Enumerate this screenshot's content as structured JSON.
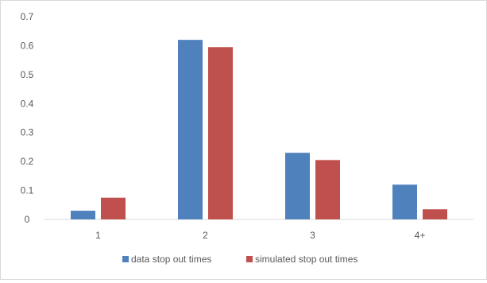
{
  "chart_data": {
    "type": "bar",
    "categories": [
      "1",
      "2",
      "3",
      "4+"
    ],
    "series": [
      {
        "name": "data stop out times",
        "values": [
          0.03,
          0.62,
          0.23,
          0.12
        ],
        "color": "#4f81bd"
      },
      {
        "name": "simulated stop out times",
        "values": [
          0.075,
          0.595,
          0.205,
          0.035
        ],
        "color": "#c0504d"
      }
    ],
    "ylim": [
      0,
      0.7
    ],
    "yticks": [
      "0",
      "0.1",
      "0.2",
      "0.3",
      "0.4",
      "0.5",
      "0.6",
      "0.7"
    ],
    "grid": false,
    "legend": "bottom",
    "title": "",
    "xlabel": "",
    "ylabel": ""
  }
}
